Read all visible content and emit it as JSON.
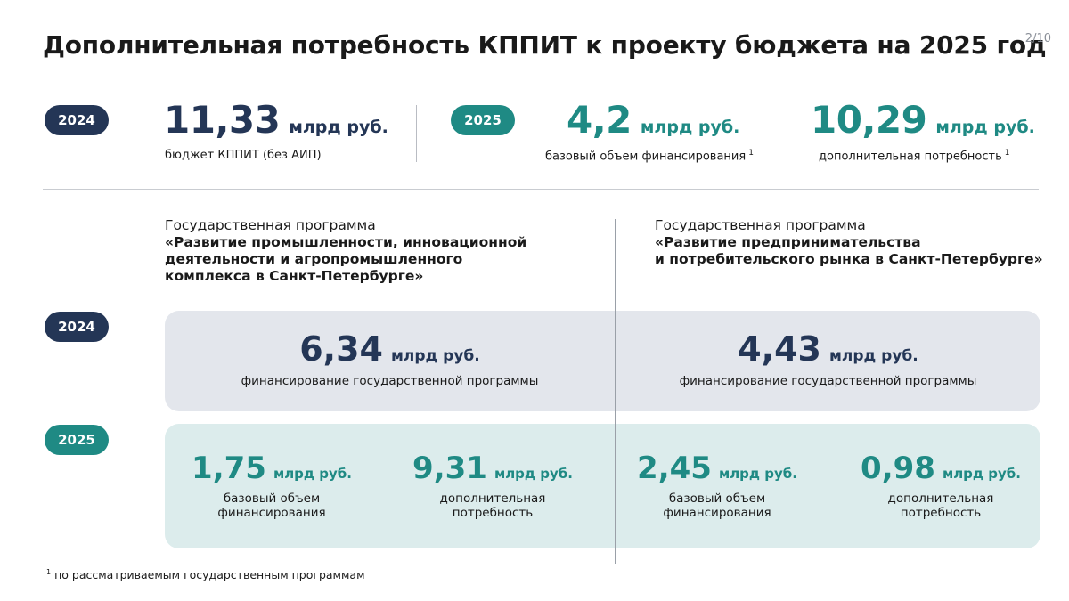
{
  "header": {
    "title": "Дополнительная потребность КППИТ к проекту бюджета на 2025 год",
    "page": "2/10"
  },
  "summary": {
    "year_2024": "2024",
    "year_2025": "2025",
    "budget_value": "11,33",
    "budget_unit": "млрд руб.",
    "budget_caption": "бюджет КППИТ (без АИП)",
    "base_value": "4,2",
    "base_unit": "млрд руб.",
    "base_caption": "базовый объем финансирования",
    "additional_value": "10,29",
    "additional_unit": "млрд руб.",
    "additional_caption": "дополнительная потребность",
    "footnote_mark": "1"
  },
  "programs": {
    "left": {
      "lead": "Государственная программа",
      "name": "«Развитие промышленности, инновационной\nдеятельности и агропромышленного\nкомплекса в Санкт-Петербурге»"
    },
    "right": {
      "lead": "Государственная программа",
      "name": " «Развитие предпринимательства\nи потребительского рынка  в Санкт-Петербурге»"
    }
  },
  "rows": {
    "year_2024": "2024",
    "year_2025": "2025",
    "left_2024": {
      "value": "6,34",
      "unit": "млрд руб.",
      "caption": "финансирование государственной программы"
    },
    "right_2024": {
      "value": "4,43",
      "unit": "млрд руб.",
      "caption": "финансирование государственной программы"
    },
    "left_2025_base": {
      "value": "1,75",
      "unit": "млрд руб.",
      "caption": "базовый объем\nфинансирования"
    },
    "left_2025_add": {
      "value": "9,31",
      "unit": "млрд руб.",
      "caption": "дополнительная\nпотребность"
    },
    "right_2025_base": {
      "value": "2,45",
      "unit": "млрд руб.",
      "caption": "базовый объем\nфинансирования"
    },
    "right_2025_add": {
      "value": "0,98",
      "unit": "млрд руб.",
      "caption": "дополнительная\nпотребность"
    }
  },
  "footnote": {
    "mark": "1",
    "text": "по рассматриваемым государственным программам"
  },
  "colors": {
    "navy": "#243656",
    "teal": "#1f8a84",
    "gray_band": "#e3e6ec",
    "mint_band": "#dcecec"
  }
}
